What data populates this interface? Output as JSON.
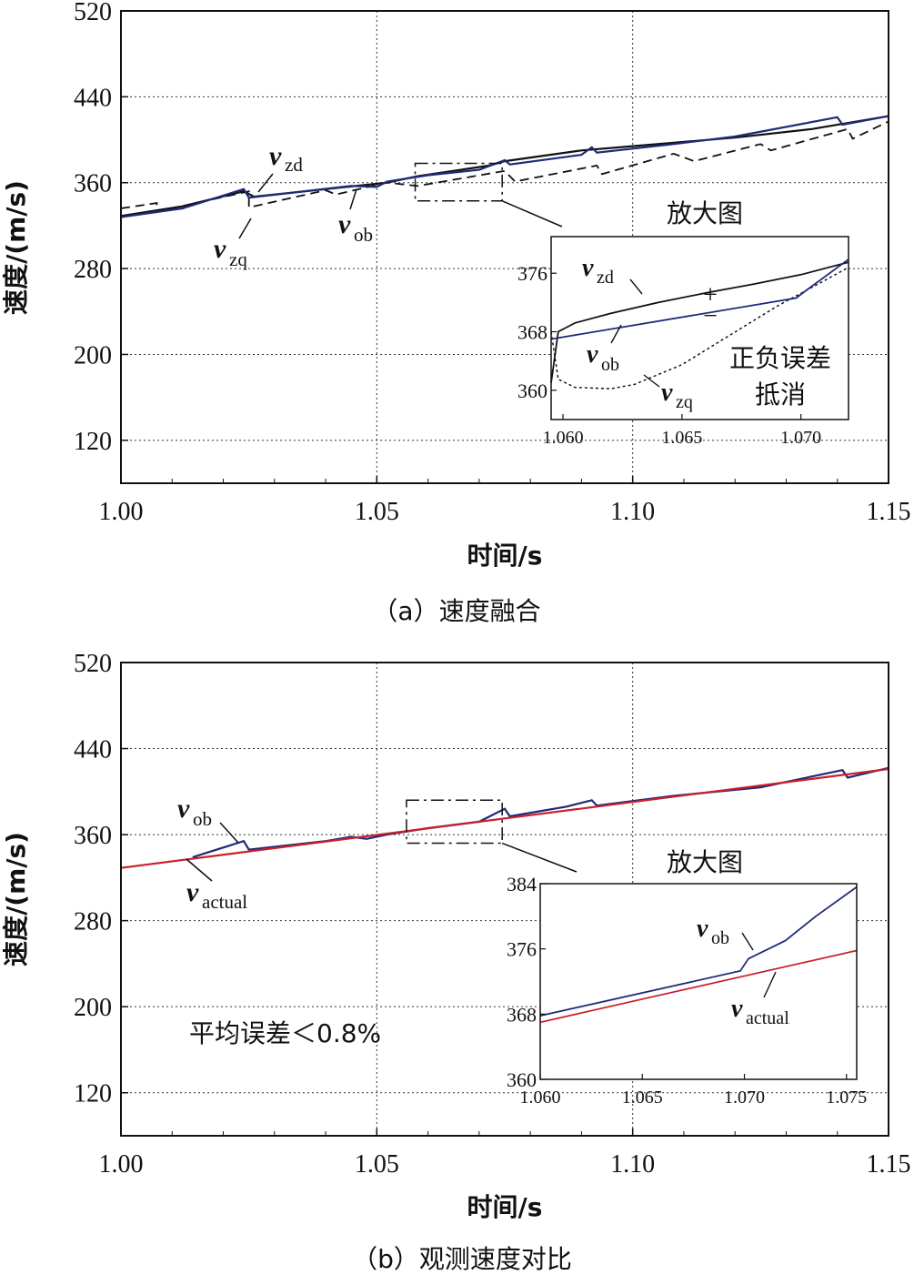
{
  "colors": {
    "v_ob": "#1f2a7a",
    "v_actual": "#c8202a",
    "black": "#111111"
  },
  "chart_data": [
    {
      "id": "a",
      "type": "line",
      "caption": "（a）速度融合",
      "xlabel": "时间/s",
      "ylabel": "速度/(m/s)",
      "xlim": [
        1.0,
        1.15
      ],
      "ylim": [
        80,
        520
      ],
      "xticks": [
        "1.00",
        "1.05",
        "1.10",
        "1.15"
      ],
      "yticks": [
        "120",
        "200",
        "280",
        "360",
        "440",
        "520"
      ],
      "ytick_values": [
        120,
        200,
        280,
        360,
        440,
        520
      ],
      "xtick_values": [
        1.0,
        1.05,
        1.1,
        1.15
      ],
      "series": [
        {
          "name": "v_zd",
          "style": "solid",
          "points": [
            [
              1.0,
              329
            ],
            [
              1.012,
              338
            ],
            [
              1.024,
              352
            ],
            [
              1.026,
              347
            ],
            [
              1.04,
              354
            ],
            [
              1.048,
              358
            ],
            [
              1.052,
              360
            ],
            [
              1.058,
              366
            ],
            [
              1.072,
              376
            ],
            [
              1.075,
              380
            ],
            [
              1.09,
              390
            ],
            [
              1.1,
              394
            ],
            [
              1.12,
              402
            ],
            [
              1.135,
              410
            ],
            [
              1.15,
              422
            ]
          ]
        },
        {
          "name": "v_zq",
          "style": "dashed",
          "points": [
            [
              1.0,
              336
            ],
            [
              1.007,
              341
            ],
            [
              1.007,
              333
            ],
            [
              1.025,
              352
            ],
            [
              1.025,
              337
            ],
            [
              1.04,
              353
            ],
            [
              1.042,
              349
            ],
            [
              1.052,
              360
            ],
            [
              1.058,
              357
            ],
            [
              1.075,
              371
            ],
            [
              1.077,
              361
            ],
            [
              1.093,
              376
            ],
            [
              1.094,
              368
            ],
            [
              1.108,
              387
            ],
            [
              1.112,
              380
            ],
            [
              1.125,
              396
            ],
            [
              1.127,
              390
            ],
            [
              1.142,
              410
            ],
            [
              1.143,
              401
            ],
            [
              1.15,
              417
            ]
          ]
        },
        {
          "name": "v_ob",
          "style": "solid",
          "points": [
            [
              1.0,
              328
            ],
            [
              1.012,
              336
            ],
            [
              1.024,
              354
            ],
            [
              1.025,
              346
            ],
            [
              1.045,
              357
            ],
            [
              1.05,
              356
            ],
            [
              1.052,
              361
            ],
            [
              1.06,
              367
            ],
            [
              1.07,
              372
            ],
            [
              1.075,
              381
            ],
            [
              1.076,
              377
            ],
            [
              1.09,
              386
            ],
            [
              1.092,
              393
            ],
            [
              1.093,
              388
            ],
            [
              1.108,
              396
            ],
            [
              1.12,
              403
            ],
            [
              1.14,
              421
            ],
            [
              1.141,
              414
            ],
            [
              1.15,
              422
            ]
          ]
        }
      ],
      "annotations": [
        {
          "id": "zd",
          "v": "v",
          "sub": "zd",
          "pos": [
            1.029,
            372
          ]
        },
        {
          "id": "zq",
          "v": "v",
          "sub": "zq",
          "pos": [
            1.018,
            315
          ]
        },
        {
          "id": "ob",
          "v": "v",
          "sub": "ob",
          "pos": [
            1.043,
            329
          ]
        }
      ],
      "zoom_box": {
        "x": [
          1.0575,
          1.0745
        ],
        "y": [
          343,
          378
        ]
      },
      "inset": {
        "title": "放大图",
        "xlim": [
          1.0595,
          1.072
        ],
        "ylim": [
          356,
          381
        ],
        "xticks": [
          "1.060",
          "1.065",
          "1.070"
        ],
        "xtick_values": [
          1.06,
          1.065,
          1.07
        ],
        "yticks": [
          "360",
          "368",
          "376"
        ],
        "ytick_values": [
          360,
          368,
          376
        ],
        "series": [
          {
            "name": "v_zd",
            "style": "solid",
            "points": [
              [
                1.0595,
                361
              ],
              [
                1.0598,
                368
              ],
              [
                1.0605,
                369.2
              ],
              [
                1.062,
                370.5
              ],
              [
                1.064,
                372
              ],
              [
                1.066,
                373.3
              ],
              [
                1.068,
                374.5
              ],
              [
                1.07,
                375.8
              ],
              [
                1.072,
                377.5
              ]
            ]
          },
          {
            "name": "v_zq",
            "style": "dotted",
            "points": [
              [
                1.0595,
                368
              ],
              [
                1.0598,
                361.5
              ],
              [
                1.0605,
                360.4
              ],
              [
                1.062,
                360.2
              ],
              [
                1.063,
                360.8
              ],
              [
                1.065,
                363.5
              ],
              [
                1.067,
                367.5
              ],
              [
                1.069,
                371.5
              ],
              [
                1.071,
                375
              ],
              [
                1.072,
                376.8
              ]
            ]
          },
          {
            "name": "v_ob",
            "style": "solid",
            "points": [
              [
                1.0595,
                367
              ],
              [
                1.0698,
                372.6
              ],
              [
                1.0702,
                373.6
              ],
              [
                1.072,
                377.9
              ]
            ]
          }
        ],
        "annotations": {
          "zd": {
            "v": "v",
            "sub": "zd"
          },
          "ob": {
            "v": "v",
            "sub": "ob"
          },
          "zq": {
            "v": "v",
            "sub": "zq"
          },
          "plus": "+",
          "minus": "−",
          "note_line1": "正负误差",
          "note_line2": "抵消"
        }
      }
    },
    {
      "id": "b",
      "type": "line",
      "caption": "（b）观测速度对比",
      "xlabel": "时间/s",
      "ylabel": "速度/(m/s)",
      "xlim": [
        1.0,
        1.15
      ],
      "ylim": [
        80,
        520
      ],
      "xticks": [
        "1.00",
        "1.05",
        "1.10",
        "1.15"
      ],
      "yticks": [
        "120",
        "200",
        "280",
        "360",
        "440",
        "520"
      ],
      "ytick_values": [
        120,
        200,
        280,
        360,
        440,
        520
      ],
      "xtick_values": [
        1.0,
        1.05,
        1.1,
        1.15
      ],
      "series": [
        {
          "name": "v_ob",
          "style": "solid",
          "points": [
            [
              1.014,
              339
            ],
            [
              1.024,
              354
            ],
            [
              1.025,
              346
            ],
            [
              1.04,
              354
            ],
            [
              1.045,
              358
            ],
            [
              1.048,
              356
            ],
            [
              1.052,
              360
            ],
            [
              1.06,
              366
            ],
            [
              1.07,
              372
            ],
            [
              1.075,
              384
            ],
            [
              1.076,
              377
            ],
            [
              1.087,
              386
            ],
            [
              1.092,
              392
            ],
            [
              1.093,
              387
            ],
            [
              1.108,
              396
            ],
            [
              1.125,
              404
            ],
            [
              1.141,
              420
            ],
            [
              1.142,
              413
            ],
            [
              1.15,
              422
            ]
          ]
        },
        {
          "name": "v_actual",
          "style": "solid",
          "points": [
            [
              1.0,
              329
            ],
            [
              1.15,
              421
            ]
          ]
        }
      ],
      "annotations": [
        {
          "id": "ob",
          "v": "v",
          "sub": "ob",
          "pos": [
            1.0145,
            372
          ]
        },
        {
          "id": "actual",
          "v": "v",
          "sub": "actual",
          "pos": [
            1.013,
            325
          ]
        }
      ],
      "note": "平均误差＜0.8%",
      "zoom_box": {
        "x": [
          1.0558,
          1.0745
        ],
        "y": [
          352,
          392
        ]
      },
      "inset": {
        "title": "放大图",
        "xlim": [
          1.06,
          1.0755
        ],
        "ylim": [
          360,
          384
        ],
        "xticks": [
          "1.060",
          "1.065",
          "1.070",
          "1.075"
        ],
        "xtick_values": [
          1.06,
          1.065,
          1.07,
          1.075
        ],
        "yticks": [
          "360",
          "368",
          "376",
          "384"
        ],
        "ytick_values": [
          360,
          368,
          376,
          384
        ],
        "series": [
          {
            "name": "v_ob",
            "style": "solid",
            "points": [
              [
                1.06,
                367.8
              ],
              [
                1.0698,
                373.3
              ],
              [
                1.0702,
                374.8
              ],
              [
                1.072,
                377
              ],
              [
                1.0735,
                380
              ],
              [
                1.0755,
                383.6
              ]
            ]
          },
          {
            "name": "v_actual",
            "style": "solid",
            "points": [
              [
                1.06,
                367
              ],
              [
                1.0755,
                375.8
              ]
            ]
          }
        ],
        "annotations": {
          "ob": {
            "v": "v",
            "sub": "ob"
          },
          "actual": {
            "v": "v",
            "sub": "actual"
          }
        }
      }
    }
  ]
}
